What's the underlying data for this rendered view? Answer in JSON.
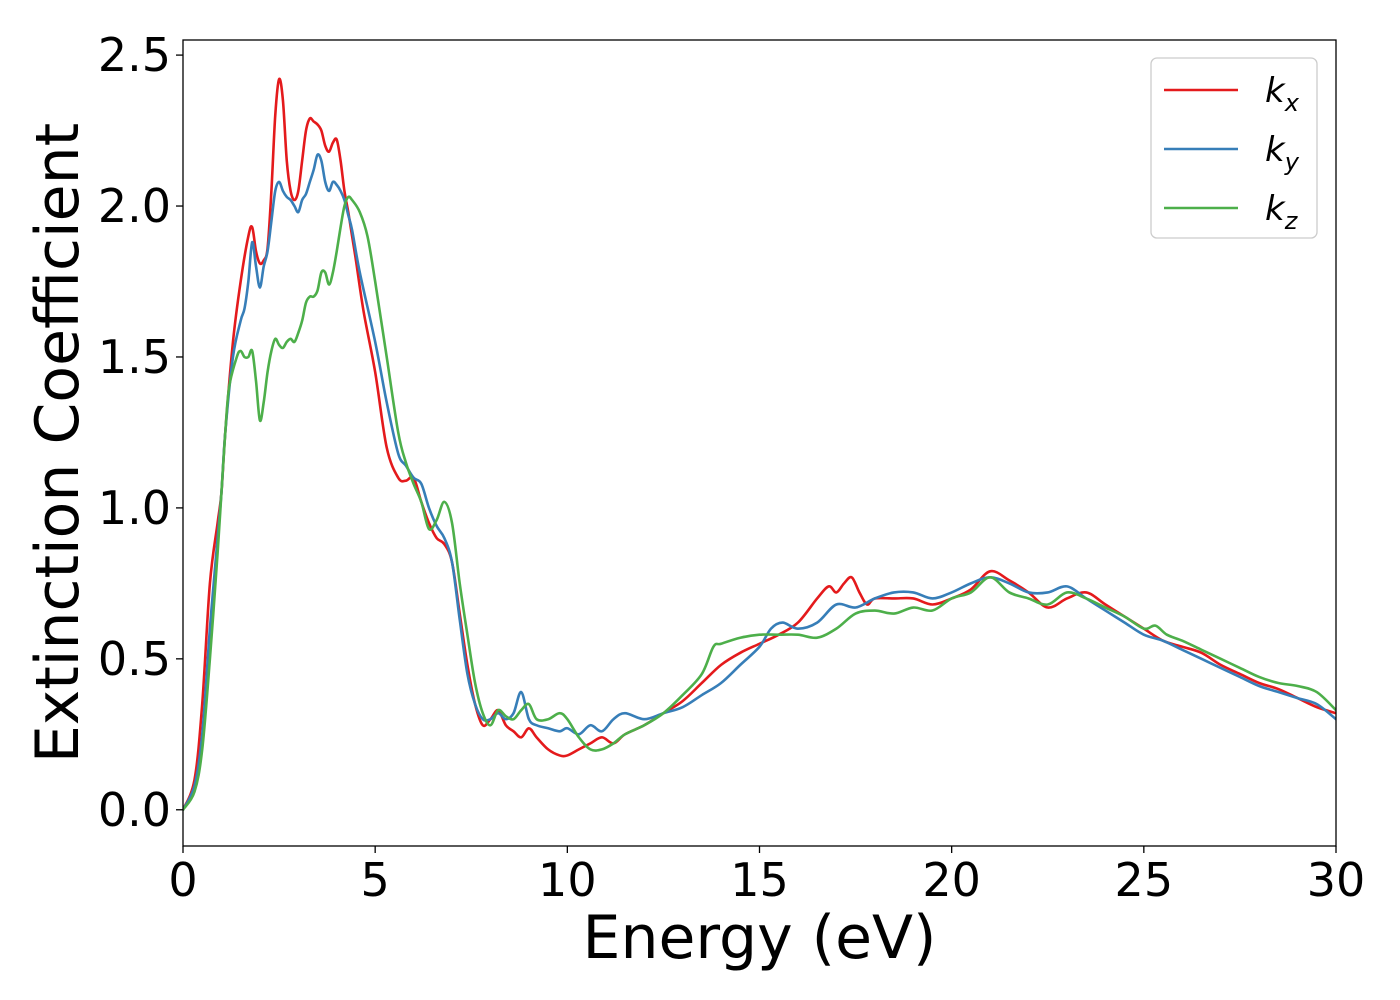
{
  "chart_data": {
    "type": "line",
    "title": "",
    "xlabel": "Energy (eV)",
    "ylabel": "Extinction Coefficient",
    "xlim": [
      0,
      30
    ],
    "ylim": [
      -0.12,
      2.55
    ],
    "xticks": [
      0,
      5,
      10,
      15,
      20,
      25,
      30
    ],
    "yticks": [
      0.0,
      0.5,
      1.0,
      1.5,
      2.0,
      2.5
    ],
    "xtick_labels": [
      "0",
      "5",
      "10",
      "15",
      "20",
      "25",
      "30"
    ],
    "ytick_labels": [
      "0.0",
      "0.5",
      "1.0",
      "1.5",
      "2.0",
      "2.5"
    ],
    "grid": false,
    "legend_position": "top-right",
    "series": [
      {
        "name": "k_x",
        "label_main": "k",
        "label_sub": "x",
        "color": "#e41a1c",
        "x": [
          0,
          0.3,
          0.5,
          0.7,
          0.9,
          1.0,
          1.1,
          1.3,
          1.5,
          1.7,
          1.8,
          1.9,
          2.0,
          2.1,
          2.2,
          2.3,
          2.4,
          2.5,
          2.6,
          2.7,
          2.8,
          2.9,
          3.0,
          3.1,
          3.2,
          3.3,
          3.4,
          3.5,
          3.6,
          3.7,
          3.8,
          3.9,
          4.0,
          4.1,
          4.2,
          4.3,
          4.4,
          4.5,
          4.7,
          5.0,
          5.3,
          5.6,
          5.8,
          6.0,
          6.2,
          6.4,
          6.6,
          6.8,
          7.0,
          7.2,
          7.4,
          7.6,
          7.8,
          8.0,
          8.2,
          8.4,
          8.6,
          8.8,
          9.0,
          9.2,
          9.5,
          9.8,
          10.0,
          10.3,
          10.6,
          10.9,
          11.2,
          11.5,
          12.0,
          12.5,
          13.0,
          13.5,
          14.0,
          14.5,
          15.0,
          15.5,
          16.0,
          16.5,
          16.8,
          17.0,
          17.2,
          17.4,
          17.6,
          17.8,
          18.0,
          18.5,
          19.0,
          19.5,
          20.0,
          20.5,
          21.0,
          21.5,
          22.0,
          22.5,
          23.0,
          23.5,
          24.0,
          24.5,
          25.0,
          25.5,
          26.0,
          26.5,
          27.0,
          27.5,
          28.0,
          28.5,
          29.0,
          29.5,
          30.0
        ],
        "y": [
          0.0,
          0.1,
          0.35,
          0.75,
          0.95,
          1.05,
          1.25,
          1.55,
          1.75,
          1.9,
          1.93,
          1.85,
          1.81,
          1.82,
          1.86,
          2.05,
          2.3,
          2.42,
          2.35,
          2.15,
          2.05,
          2.02,
          2.05,
          2.15,
          2.25,
          2.29,
          2.28,
          2.27,
          2.25,
          2.2,
          2.18,
          2.21,
          2.22,
          2.15,
          2.05,
          1.98,
          1.9,
          1.82,
          1.65,
          1.45,
          1.2,
          1.1,
          1.09,
          1.1,
          1.02,
          0.95,
          0.9,
          0.88,
          0.82,
          0.65,
          0.48,
          0.35,
          0.28,
          0.3,
          0.33,
          0.28,
          0.26,
          0.24,
          0.27,
          0.24,
          0.2,
          0.18,
          0.18,
          0.2,
          0.22,
          0.24,
          0.22,
          0.25,
          0.28,
          0.32,
          0.36,
          0.42,
          0.48,
          0.52,
          0.55,
          0.58,
          0.62,
          0.7,
          0.74,
          0.72,
          0.75,
          0.77,
          0.72,
          0.68,
          0.7,
          0.7,
          0.7,
          0.68,
          0.7,
          0.73,
          0.79,
          0.76,
          0.72,
          0.67,
          0.7,
          0.72,
          0.68,
          0.64,
          0.6,
          0.56,
          0.54,
          0.52,
          0.48,
          0.45,
          0.42,
          0.4,
          0.37,
          0.34,
          0.32
        ]
      },
      {
        "name": "k_y",
        "label_main": "k",
        "label_sub": "y",
        "color": "#377eb8",
        "x": [
          0,
          0.3,
          0.5,
          0.7,
          0.9,
          1.0,
          1.1,
          1.3,
          1.5,
          1.6,
          1.7,
          1.8,
          1.9,
          2.0,
          2.1,
          2.2,
          2.3,
          2.4,
          2.5,
          2.6,
          2.7,
          2.8,
          2.9,
          3.0,
          3.1,
          3.2,
          3.3,
          3.4,
          3.5,
          3.6,
          3.7,
          3.8,
          3.9,
          4.0,
          4.1,
          4.2,
          4.3,
          4.4,
          4.6,
          5.0,
          5.3,
          5.6,
          5.8,
          6.0,
          6.2,
          6.4,
          6.6,
          6.8,
          7.0,
          7.2,
          7.4,
          7.6,
          7.8,
          8.0,
          8.2,
          8.4,
          8.6,
          8.8,
          9.0,
          9.2,
          9.5,
          9.8,
          10.0,
          10.3,
          10.6,
          10.9,
          11.2,
          11.5,
          12.0,
          12.5,
          13.0,
          13.5,
          14.0,
          14.5,
          15.0,
          15.3,
          15.6,
          16.0,
          16.5,
          17.0,
          17.5,
          18.0,
          18.5,
          19.0,
          19.5,
          20.0,
          20.5,
          21.0,
          21.5,
          22.0,
          22.5,
          23.0,
          23.5,
          24.0,
          24.5,
          25.0,
          25.5,
          26.0,
          26.5,
          27.0,
          27.5,
          28.0,
          28.5,
          29.0,
          29.5,
          30.0
        ],
        "y": [
          0.0,
          0.08,
          0.25,
          0.6,
          0.9,
          1.05,
          1.25,
          1.5,
          1.62,
          1.66,
          1.75,
          1.88,
          1.8,
          1.73,
          1.8,
          1.85,
          1.95,
          2.05,
          2.08,
          2.05,
          2.03,
          2.02,
          2.0,
          1.98,
          2.02,
          2.04,
          2.08,
          2.12,
          2.17,
          2.15,
          2.08,
          2.05,
          2.08,
          2.07,
          2.05,
          2.02,
          1.97,
          1.92,
          1.78,
          1.55,
          1.35,
          1.18,
          1.14,
          1.1,
          1.08,
          1.0,
          0.94,
          0.9,
          0.82,
          0.63,
          0.45,
          0.35,
          0.3,
          0.3,
          0.32,
          0.3,
          0.32,
          0.39,
          0.3,
          0.28,
          0.27,
          0.26,
          0.27,
          0.25,
          0.28,
          0.26,
          0.3,
          0.32,
          0.3,
          0.32,
          0.34,
          0.38,
          0.42,
          0.48,
          0.54,
          0.6,
          0.62,
          0.6,
          0.62,
          0.68,
          0.67,
          0.7,
          0.72,
          0.72,
          0.7,
          0.72,
          0.75,
          0.77,
          0.75,
          0.72,
          0.72,
          0.74,
          0.7,
          0.66,
          0.62,
          0.58,
          0.56,
          0.53,
          0.5,
          0.47,
          0.44,
          0.41,
          0.39,
          0.37,
          0.35,
          0.3
        ]
      },
      {
        "name": "k_z",
        "label_main": "k",
        "label_sub": "z",
        "color": "#4daf4a",
        "x": [
          0,
          0.3,
          0.5,
          0.7,
          0.9,
          1.0,
          1.1,
          1.2,
          1.4,
          1.5,
          1.6,
          1.7,
          1.8,
          1.9,
          2.0,
          2.1,
          2.2,
          2.3,
          2.4,
          2.5,
          2.6,
          2.7,
          2.8,
          2.9,
          3.0,
          3.1,
          3.2,
          3.3,
          3.4,
          3.5,
          3.6,
          3.7,
          3.8,
          3.9,
          4.0,
          4.1,
          4.2,
          4.3,
          4.4,
          4.6,
          4.8,
          5.0,
          5.3,
          5.6,
          5.8,
          6.0,
          6.2,
          6.4,
          6.6,
          6.8,
          7.0,
          7.2,
          7.4,
          7.6,
          7.8,
          8.0,
          8.2,
          8.4,
          8.6,
          8.8,
          9.0,
          9.2,
          9.5,
          9.8,
          10.0,
          10.3,
          10.6,
          10.9,
          11.2,
          11.5,
          12.0,
          12.5,
          13.0,
          13.5,
          13.8,
          14.0,
          14.5,
          15.0,
          15.5,
          16.0,
          16.5,
          17.0,
          17.5,
          18.0,
          18.5,
          19.0,
          19.5,
          20.0,
          20.5,
          21.0,
          21.5,
          22.0,
          22.5,
          23.0,
          23.5,
          24.0,
          24.5,
          25.0,
          25.3,
          25.6,
          26.0,
          26.5,
          27.0,
          27.5,
          28.0,
          28.5,
          29.0,
          29.5,
          30.0
        ],
        "y": [
          0.0,
          0.06,
          0.2,
          0.5,
          0.85,
          1.05,
          1.25,
          1.4,
          1.5,
          1.52,
          1.5,
          1.5,
          1.52,
          1.42,
          1.29,
          1.35,
          1.45,
          1.52,
          1.56,
          1.54,
          1.53,
          1.55,
          1.56,
          1.55,
          1.58,
          1.62,
          1.68,
          1.7,
          1.7,
          1.72,
          1.78,
          1.78,
          1.74,
          1.78,
          1.85,
          1.93,
          2.0,
          2.03,
          2.02,
          1.98,
          1.9,
          1.75,
          1.5,
          1.25,
          1.15,
          1.08,
          1.02,
          0.93,
          0.96,
          1.02,
          0.95,
          0.75,
          0.58,
          0.42,
          0.32,
          0.28,
          0.33,
          0.31,
          0.3,
          0.33,
          0.35,
          0.3,
          0.3,
          0.32,
          0.3,
          0.24,
          0.2,
          0.2,
          0.22,
          0.25,
          0.28,
          0.32,
          0.38,
          0.45,
          0.54,
          0.55,
          0.57,
          0.58,
          0.58,
          0.58,
          0.57,
          0.6,
          0.65,
          0.66,
          0.65,
          0.67,
          0.66,
          0.7,
          0.72,
          0.77,
          0.72,
          0.7,
          0.68,
          0.72,
          0.7,
          0.67,
          0.64,
          0.6,
          0.61,
          0.58,
          0.56,
          0.53,
          0.5,
          0.47,
          0.44,
          0.42,
          0.41,
          0.39,
          0.33
        ]
      }
    ]
  }
}
